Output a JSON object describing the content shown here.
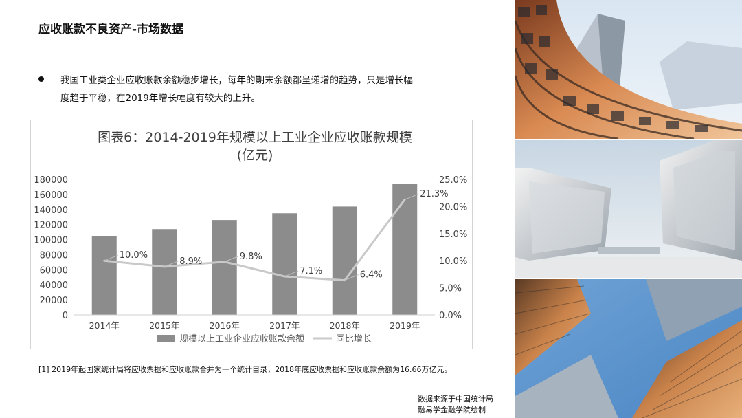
{
  "page": {
    "title": "应收账款不良资产-市场数据",
    "bullet_line1": "我国工业类企业应收账款余额稳步增长，每年的期末余额都呈递增的趋势，只是增长幅",
    "bullet_line2": "度趋于平稳，在2019年增长幅度有较大的上升。",
    "footnote": "[1] 2019年起国家统计局将应收票据和应收账款合并为一个统计目录，2018年底应收票据和应收账款余额为16.66万亿元。",
    "source_line1": "数据来源于中国统计局",
    "source_line2": "融易学金融学院绘制"
  },
  "chart_data": {
    "type": "bar",
    "title": "图表6：2014-2019年规模以上工业企业应收账款规模",
    "subtitle": "(亿元)",
    "categories": [
      "2014年",
      "2015年",
      "2016年",
      "2017年",
      "2018年",
      "2019年"
    ],
    "series": [
      {
        "name": "规模以上工业企业应收账款余额",
        "type": "bar",
        "axis": "left",
        "values": [
          105000,
          114000,
          126000,
          135000,
          144000,
          174000
        ],
        "color": "#8c8c8c"
      },
      {
        "name": "同比增长",
        "type": "line",
        "axis": "right",
        "values": [
          10.0,
          8.9,
          9.8,
          7.1,
          6.4,
          21.3
        ],
        "color": "#c9c9c9"
      }
    ],
    "data_labels": [
      "10.0%",
      "8.9%",
      "9.8%",
      "7.1%",
      "6.4%",
      "21.3%"
    ],
    "ylim_left": [
      0,
      180000
    ],
    "yticks_left": [
      "0",
      "20000",
      "40000",
      "60000",
      "80000",
      "100000",
      "120000",
      "140000",
      "160000",
      "180000"
    ],
    "ylim_right": [
      0,
      25
    ],
    "yticks_right": [
      "0.0%",
      "5.0%",
      "10.0%",
      "15.0%",
      "20.0%",
      "25.0%"
    ],
    "legend_position": "bottom",
    "grid": false
  },
  "colors": {
    "bar": "#8c8c8c",
    "line": "#c9c9c9",
    "text": "#111111",
    "axis_text": "#595959"
  },
  "photos": [
    "curved-building-photo",
    "angular-glass-buildings-photo",
    "skyscrapers-upward-photo"
  ]
}
